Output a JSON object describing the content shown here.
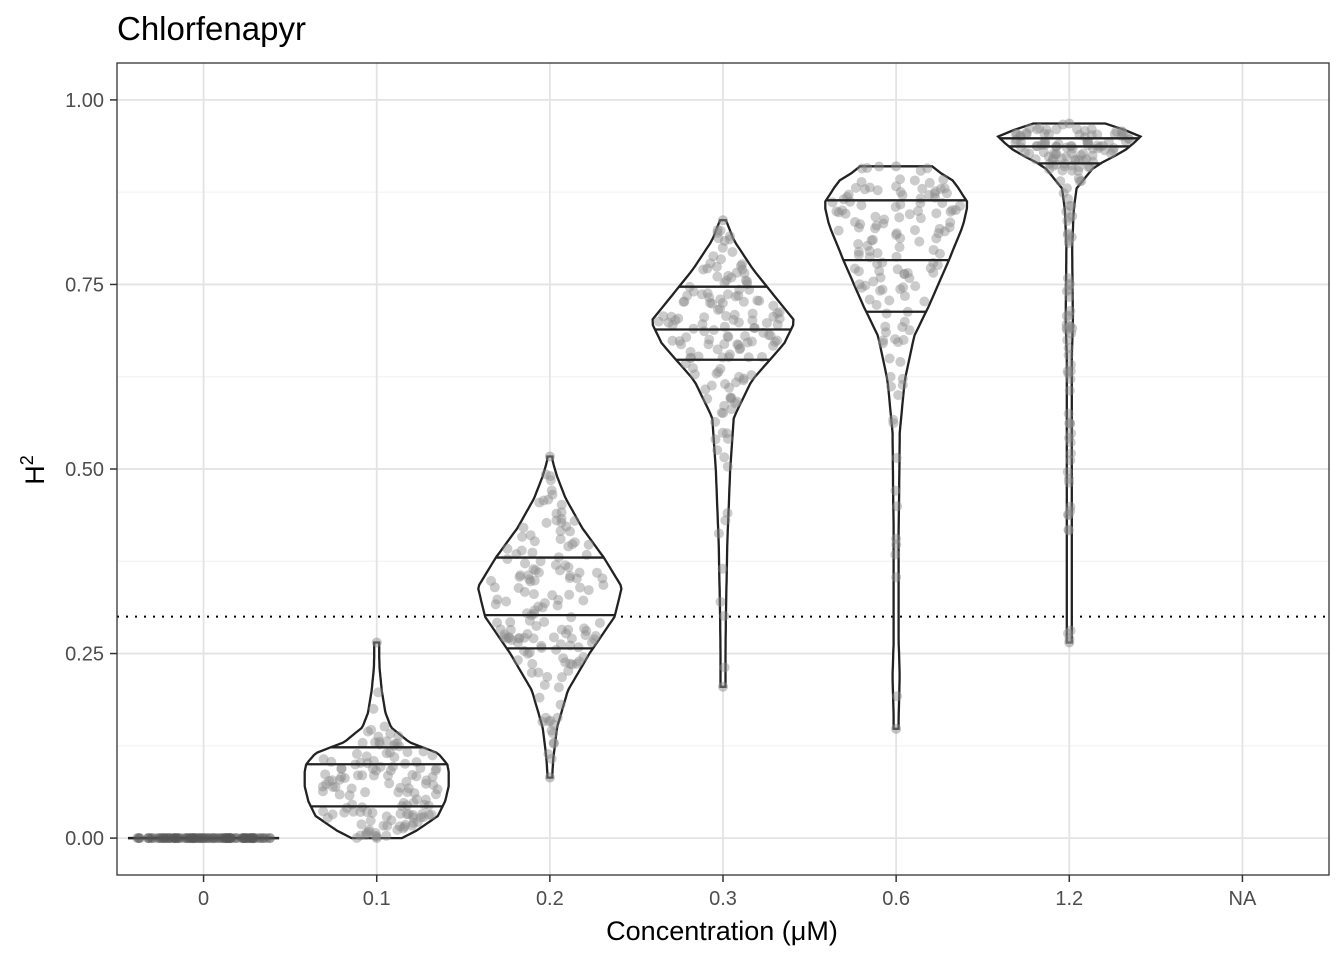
{
  "chart_data": {
    "type": "violin",
    "title": "Chlorfenapyr",
    "xlabel": "Concentration (μM)",
    "ylabel": "H",
    "ylabel_superscript": "2",
    "categories": [
      "0",
      "0.1",
      "0.2",
      "0.3",
      "0.6",
      "1.2",
      "NA"
    ],
    "ylim": [
      -0.05,
      1.05
    ],
    "y_ticks": [
      0.0,
      0.25,
      0.5,
      0.75,
      1.0
    ],
    "y_tick_labels": [
      "0.00",
      "0.25",
      "0.50",
      "0.75",
      "1.00"
    ],
    "threshold_line": {
      "value": 0.3,
      "style": "dotted"
    },
    "grid": true,
    "point_color": "#8c8c8c",
    "violin_stroke": "#222222",
    "groups": [
      {
        "category": "0",
        "min": 0.0,
        "max": 0.0,
        "q1": 0.0,
        "median": 0.0,
        "q3": 0.0,
        "n_points": 110,
        "density": [
          [
            0.0,
            1.0
          ]
        ]
      },
      {
        "category": "0.1",
        "min": 0.0,
        "max": 0.265,
        "q1": 0.043,
        "median": 0.1,
        "q3": 0.123,
        "n_points": 130,
        "density": [
          [
            0.0,
            0.35
          ],
          [
            0.01,
            0.55
          ],
          [
            0.03,
            0.85
          ],
          [
            0.05,
            0.95
          ],
          [
            0.07,
            1.0
          ],
          [
            0.09,
            1.0
          ],
          [
            0.1,
            0.98
          ],
          [
            0.115,
            0.85
          ],
          [
            0.13,
            0.45
          ],
          [
            0.15,
            0.2
          ],
          [
            0.17,
            0.12
          ],
          [
            0.2,
            0.07
          ],
          [
            0.23,
            0.04
          ],
          [
            0.26,
            0.03
          ],
          [
            0.265,
            0.03
          ]
        ]
      },
      {
        "category": "0.2",
        "min": 0.082,
        "max": 0.517,
        "q1": 0.257,
        "median": 0.302,
        "q3": 0.38,
        "n_points": 150,
        "density": [
          [
            0.082,
            0.03
          ],
          [
            0.11,
            0.05
          ],
          [
            0.15,
            0.1
          ],
          [
            0.2,
            0.25
          ],
          [
            0.25,
            0.55
          ],
          [
            0.3,
            0.9
          ],
          [
            0.34,
            1.0
          ],
          [
            0.38,
            0.75
          ],
          [
            0.42,
            0.45
          ],
          [
            0.46,
            0.22
          ],
          [
            0.49,
            0.1
          ],
          [
            0.51,
            0.04
          ],
          [
            0.517,
            0.03
          ]
        ]
      },
      {
        "category": "0.3",
        "min": 0.205,
        "max": 0.837,
        "q1": 0.648,
        "median": 0.689,
        "q3": 0.747,
        "n_points": 150,
        "density": [
          [
            0.205,
            0.03
          ],
          [
            0.3,
            0.04
          ],
          [
            0.4,
            0.06
          ],
          [
            0.5,
            0.1
          ],
          [
            0.57,
            0.15
          ],
          [
            0.62,
            0.4
          ],
          [
            0.67,
            0.85
          ],
          [
            0.7,
            1.0
          ],
          [
            0.73,
            0.75
          ],
          [
            0.77,
            0.42
          ],
          [
            0.81,
            0.15
          ],
          [
            0.835,
            0.05
          ],
          [
            0.837,
            0.04
          ]
        ]
      },
      {
        "category": "0.6",
        "min": 0.148,
        "max": 0.91,
        "q1": 0.713,
        "median": 0.783,
        "q3": 0.864,
        "n_points": 140,
        "density": [
          [
            0.148,
            0.03
          ],
          [
            0.22,
            0.05
          ],
          [
            0.28,
            0.03
          ],
          [
            0.35,
            0.02
          ],
          [
            0.45,
            0.04
          ],
          [
            0.55,
            0.05
          ],
          [
            0.62,
            0.12
          ],
          [
            0.68,
            0.25
          ],
          [
            0.72,
            0.45
          ],
          [
            0.78,
            0.72
          ],
          [
            0.83,
            0.93
          ],
          [
            0.86,
            1.0
          ],
          [
            0.89,
            0.8
          ],
          [
            0.905,
            0.55
          ],
          [
            0.91,
            0.5
          ]
        ]
      },
      {
        "category": "1.2",
        "min": 0.265,
        "max": 0.968,
        "q1": 0.914,
        "median": 0.937,
        "q3": 0.948,
        "n_points": 160,
        "density": [
          [
            0.265,
            0.02
          ],
          [
            0.4,
            0.02
          ],
          [
            0.52,
            0.03
          ],
          [
            0.62,
            0.025
          ],
          [
            0.7,
            0.05
          ],
          [
            0.75,
            0.045
          ],
          [
            0.8,
            0.04
          ],
          [
            0.85,
            0.06
          ],
          [
            0.88,
            0.1
          ],
          [
            0.91,
            0.35
          ],
          [
            0.93,
            0.75
          ],
          [
            0.95,
            1.0
          ],
          [
            0.96,
            0.75
          ],
          [
            0.968,
            0.5
          ]
        ]
      }
    ]
  }
}
